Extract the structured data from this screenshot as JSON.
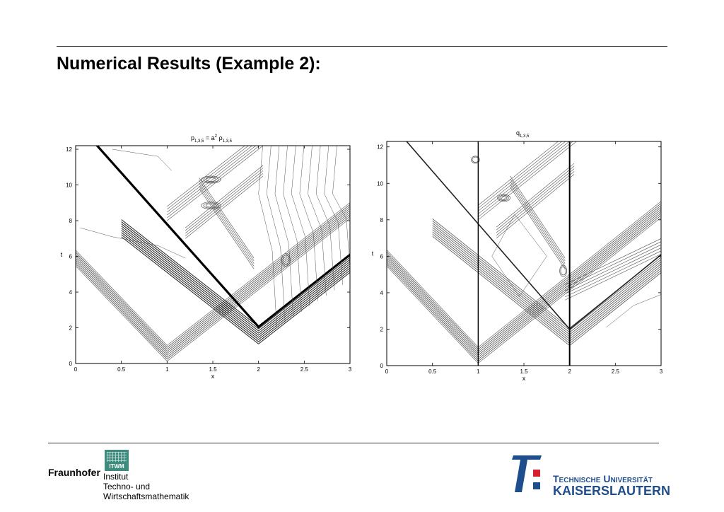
{
  "slide": {
    "title": "Numerical Results (Example 2):"
  },
  "chart_data": [
    {
      "type": "contour",
      "title_main": "p",
      "title_sub": "1,3,5",
      "title_eq": " = a",
      "title_sup": "2",
      "title_rho": " ρ",
      "title_sub2": "1,3,5",
      "xlabel": "x",
      "ylabel": "t",
      "xlim": [
        0,
        3
      ],
      "ylim": [
        0,
        12.2
      ],
      "xticks": [
        "0",
        "0.5",
        "1",
        "1.5",
        "2",
        "2.5",
        "3"
      ],
      "yticks": [
        "0",
        "2",
        "4",
        "6",
        "8",
        "10",
        "12"
      ],
      "contour_color": "#555555"
    },
    {
      "type": "contour",
      "title_main": "q",
      "title_sub": "1,3,5",
      "xlabel": "x",
      "ylabel": "t",
      "xlim": [
        0,
        3
      ],
      "ylim": [
        0,
        12.3
      ],
      "xticks": [
        "0",
        "0.5",
        "1",
        "1.5",
        "2",
        "2.5",
        "3"
      ],
      "yticks": [
        "0",
        "2",
        "4",
        "6",
        "8",
        "10",
        "12"
      ],
      "interfaces_x": [
        1,
        2
      ],
      "contour_color": "#555555"
    }
  ],
  "footer": {
    "fraunhofer": {
      "name": "Fraunhofer",
      "logo_text": "ITWM",
      "institute_lines": [
        "Institut",
        "Techno- und",
        "Wirtschaftsmathematik"
      ],
      "color": "#3e8c7e"
    },
    "tu": {
      "line1": "Technische Universität",
      "line2": "Kaiserslautern",
      "blue": "#1f4e8c",
      "red": "#d6202f"
    }
  }
}
